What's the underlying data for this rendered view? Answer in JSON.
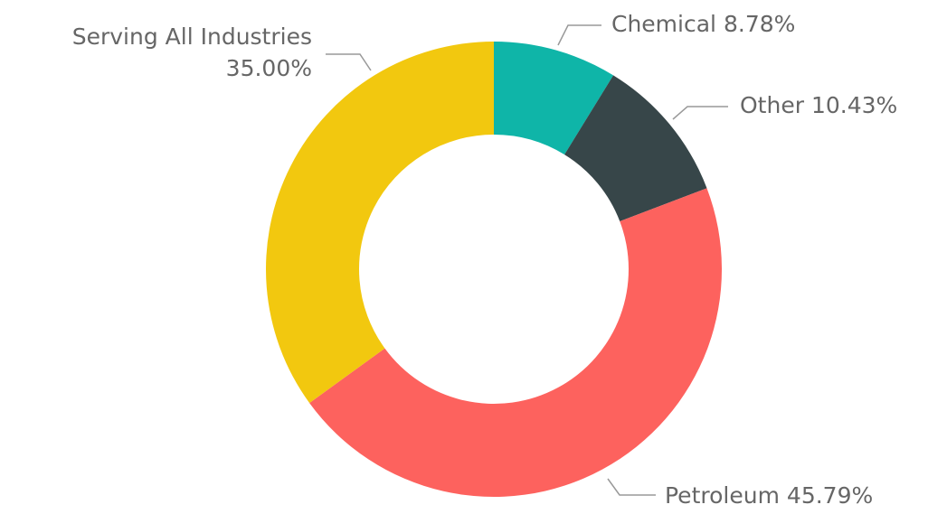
{
  "chart_data": {
    "type": "donut",
    "categories": [
      "Chemical",
      "Other",
      "Petroleum",
      "Serving All Industries"
    ],
    "values": [
      8.78,
      10.43,
      45.79,
      35.0
    ],
    "value_labels": [
      "8.78%",
      "10.43%",
      "45.79%",
      "35.00%"
    ],
    "colors": [
      "#0fb5a8",
      "#374649",
      "#fd625e",
      "#f2c80f"
    ]
  }
}
